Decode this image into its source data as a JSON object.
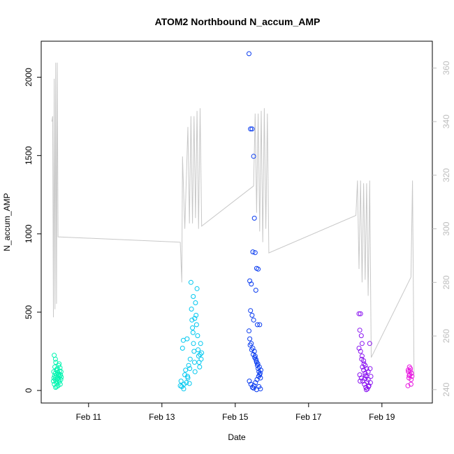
{
  "chart_data": {
    "type": "scatter",
    "title": "ATOM2 Northbound N_accum_AMP",
    "xlabel": "Date",
    "ylabel": "N_accum_AMP",
    "xlim": [
      "2024-02-09T17:00",
      "2024-02-20T09:00"
    ],
    "ylim": [
      -80,
      2230
    ],
    "ylim_right": [
      235,
      370
    ],
    "x_ticks": [
      {
        "value": "2024-02-11T00:00",
        "label": "Feb 11"
      },
      {
        "value": "2024-02-13T00:00",
        "label": "Feb 13"
      },
      {
        "value": "2024-02-15T00:00",
        "label": "Feb 15"
      },
      {
        "value": "2024-02-17T00:00",
        "label": "Feb 17"
      },
      {
        "value": "2024-02-19T00:00",
        "label": "Feb 19"
      }
    ],
    "y_ticks": [
      0,
      500,
      1000,
      1500,
      2000
    ],
    "y_ticks_right": [
      240,
      260,
      280,
      300,
      320,
      340,
      360
    ],
    "grid": false,
    "legend": "none",
    "colors": {
      "line": "#c8c8c8",
      "axis": "#000000",
      "right_axis": "#bdbdbd"
    },
    "series": [
      {
        "color": "#00f5b0",
        "points": [
          [
            "2024-02-10T01:00",
            60
          ],
          [
            "2024-02-10T01:10",
            120
          ],
          [
            "2024-02-10T01:20",
            80
          ],
          [
            "2024-02-10T01:30",
            225
          ],
          [
            "2024-02-10T01:35",
            40
          ],
          [
            "2024-02-10T01:45",
            95
          ],
          [
            "2024-02-10T01:55",
            150
          ],
          [
            "2024-02-10T02:05",
            70
          ],
          [
            "2024-02-10T02:15",
            110
          ],
          [
            "2024-02-10T02:25",
            20
          ],
          [
            "2024-02-10T02:30",
            180
          ],
          [
            "2024-02-10T02:40",
            85
          ],
          [
            "2024-02-10T02:50",
            130
          ],
          [
            "2024-02-10T03:00",
            60
          ],
          [
            "2024-02-10T03:10",
            100
          ],
          [
            "2024-02-10T03:20",
            45
          ],
          [
            "2024-02-10T03:30",
            140
          ],
          [
            "2024-02-10T03:40",
            75
          ],
          [
            "2024-02-10T03:50",
            115
          ],
          [
            "2024-02-10T04:00",
            30
          ],
          [
            "2024-02-10T04:10",
            95
          ],
          [
            "2024-02-10T04:20",
            160
          ],
          [
            "2024-02-10T04:30",
            65
          ],
          [
            "2024-02-10T04:40",
            105
          ],
          [
            "2024-02-10T04:50",
            55
          ],
          [
            "2024-02-10T05:00",
            125
          ],
          [
            "2024-02-10T05:10",
            90
          ],
          [
            "2024-02-10T05:20",
            145
          ],
          [
            "2024-02-10T05:30",
            40
          ],
          [
            "2024-02-10T05:40",
            100
          ],
          [
            "2024-02-10T05:50",
            70
          ],
          [
            "2024-02-10T06:00",
            120
          ],
          [
            "2024-02-10T06:10",
            85
          ],
          [
            "2024-02-10T02:20",
            200
          ],
          [
            "2024-02-10T03:05",
            25
          ],
          [
            "2024-02-10T04:45",
            170
          ]
        ]
      },
      {
        "color": "#00c8f0",
        "points": [
          [
            "2024-02-13T12:00",
            30
          ],
          [
            "2024-02-13T12:30",
            60
          ],
          [
            "2024-02-13T13:00",
            25
          ],
          [
            "2024-02-13T13:30",
            270
          ],
          [
            "2024-02-13T14:00",
            320
          ],
          [
            "2024-02-13T14:30",
            40
          ],
          [
            "2024-02-13T15:00",
            100
          ],
          [
            "2024-02-13T15:30",
            130
          ],
          [
            "2024-02-13T16:00",
            50
          ],
          [
            "2024-02-13T16:30",
            330
          ],
          [
            "2024-02-13T17:00",
            80
          ],
          [
            "2024-02-13T17:30",
            160
          ],
          [
            "2024-02-13T18:00",
            45
          ],
          [
            "2024-02-13T18:30",
            200
          ],
          [
            "2024-02-13T19:00",
            690
          ],
          [
            "2024-02-13T19:20",
            520
          ],
          [
            "2024-02-13T19:40",
            450
          ],
          [
            "2024-02-13T20:00",
            400
          ],
          [
            "2024-02-13T20:20",
            370
          ],
          [
            "2024-02-13T20:40",
            300
          ],
          [
            "2024-02-13T21:00",
            250
          ],
          [
            "2024-02-13T21:20",
            180
          ],
          [
            "2024-02-13T21:40",
            120
          ],
          [
            "2024-02-13T22:00",
            560
          ],
          [
            "2024-02-13T22:20",
            480
          ],
          [
            "2024-02-13T22:40",
            420
          ],
          [
            "2024-02-13T23:00",
            650
          ],
          [
            "2024-02-13T23:20",
            350
          ],
          [
            "2024-02-13T23:40",
            260
          ],
          [
            "2024-02-14T00:00",
            220
          ],
          [
            "2024-02-14T00:20",
            180
          ],
          [
            "2024-02-14T00:40",
            150
          ],
          [
            "2024-02-14T01:00",
            230
          ],
          [
            "2024-02-14T01:20",
            300
          ],
          [
            "2024-02-14T01:40",
            200
          ],
          [
            "2024-02-14T02:00",
            240
          ],
          [
            "2024-02-13T14:15",
            10
          ],
          [
            "2024-02-13T16:45",
            90
          ],
          [
            "2024-02-13T18:15",
            140
          ],
          [
            "2024-02-13T20:30",
            600
          ],
          [
            "2024-02-13T21:30",
            460
          ]
        ]
      },
      {
        "color": "#0a3cf0",
        "points": [
          [
            "2024-02-15T09:00",
            2150
          ],
          [
            "2024-02-15T10:00",
            1670
          ],
          [
            "2024-02-15T11:00",
            1670
          ],
          [
            "2024-02-15T12:00",
            1495
          ],
          [
            "2024-02-15T12:30",
            1100
          ],
          [
            "2024-02-15T11:30",
            885
          ],
          [
            "2024-02-15T13:00",
            880
          ],
          [
            "2024-02-15T14:00",
            780
          ],
          [
            "2024-02-15T15:00",
            775
          ],
          [
            "2024-02-15T09:30",
            700
          ],
          [
            "2024-02-15T10:30",
            680
          ],
          [
            "2024-02-15T13:30",
            640
          ],
          [
            "2024-02-15T10:00",
            510
          ],
          [
            "2024-02-15T11:00",
            480
          ],
          [
            "2024-02-15T12:00",
            450
          ],
          [
            "2024-02-15T14:30",
            420
          ],
          [
            "2024-02-15T16:00",
            420
          ],
          [
            "2024-02-15T09:00",
            380
          ],
          [
            "2024-02-15T09:30",
            330
          ],
          [
            "2024-02-15T10:30",
            300
          ],
          [
            "2024-02-15T11:30",
            270
          ],
          [
            "2024-02-15T12:30",
            250
          ],
          [
            "2024-02-15T13:00",
            220
          ],
          [
            "2024-02-15T13:30",
            200
          ],
          [
            "2024-02-15T14:00",
            180
          ],
          [
            "2024-02-15T14:30",
            160
          ],
          [
            "2024-02-15T15:00",
            140
          ],
          [
            "2024-02-15T15:30",
            120
          ],
          [
            "2024-02-15T16:00",
            100
          ],
          [
            "2024-02-15T16:30",
            80
          ],
          [
            "2024-02-15T09:15",
            60
          ],
          [
            "2024-02-15T10:15",
            40
          ],
          [
            "2024-02-15T11:15",
            20
          ],
          [
            "2024-02-15T12:15",
            30
          ],
          [
            "2024-02-15T13:15",
            50
          ],
          [
            "2024-02-15T14:15",
            70
          ],
          [
            "2024-02-15T15:15",
            90
          ],
          [
            "2024-02-15T16:15",
            110
          ],
          [
            "2024-02-15T16:45",
            130
          ],
          [
            "2024-02-15T15:45",
            150
          ],
          [
            "2024-02-15T14:45",
            170
          ],
          [
            "2024-02-15T13:45",
            190
          ],
          [
            "2024-02-15T12:45",
            210
          ],
          [
            "2024-02-15T11:45",
            230
          ],
          [
            "2024-02-15T10:45",
            260
          ],
          [
            "2024-02-15T09:45",
            290
          ],
          [
            "2024-02-15T16:30",
            10
          ],
          [
            "2024-02-15T15:30",
            25
          ],
          [
            "2024-02-15T14:00",
            5
          ],
          [
            "2024-02-15T12:00",
            15
          ]
        ]
      },
      {
        "color": "#8a14f0",
        "points": [
          [
            "2024-02-18T09:00",
            490
          ],
          [
            "2024-02-18T10:00",
            490
          ],
          [
            "2024-02-18T09:30",
            385
          ],
          [
            "2024-02-18T10:30",
            350
          ],
          [
            "2024-02-18T11:00",
            300
          ],
          [
            "2024-02-18T16:00",
            300
          ],
          [
            "2024-02-18T09:00",
            270
          ],
          [
            "2024-02-18T10:00",
            250
          ],
          [
            "2024-02-18T11:00",
            220
          ],
          [
            "2024-02-18T12:00",
            190
          ],
          [
            "2024-02-18T13:00",
            160
          ],
          [
            "2024-02-18T14:00",
            140
          ],
          [
            "2024-02-18T15:00",
            120
          ],
          [
            "2024-02-18T09:30",
            100
          ],
          [
            "2024-02-18T10:30",
            80
          ],
          [
            "2024-02-18T11:30",
            60
          ],
          [
            "2024-02-18T12:30",
            40
          ],
          [
            "2024-02-18T13:30",
            20
          ],
          [
            "2024-02-18T14:30",
            10
          ],
          [
            "2024-02-18T15:30",
            30
          ],
          [
            "2024-02-18T16:30",
            50
          ],
          [
            "2024-02-18T12:00",
            130
          ],
          [
            "2024-02-18T13:00",
            110
          ],
          [
            "2024-02-18T14:00",
            90
          ],
          [
            "2024-02-18T15:00",
            70
          ],
          [
            "2024-02-18T11:15",
            150
          ],
          [
            "2024-02-18T12:15",
            170
          ],
          [
            "2024-02-18T13:15",
            95
          ],
          [
            "2024-02-18T14:15",
            55
          ],
          [
            "2024-02-18T15:15",
            25
          ],
          [
            "2024-02-18T10:45",
            200
          ],
          [
            "2024-02-18T16:15",
            140
          ],
          [
            "2024-02-18T09:45",
            60
          ],
          [
            "2024-02-18T16:45",
            90
          ],
          [
            "2024-02-18T13:45",
            5
          ],
          [
            "2024-02-18T12:45",
            75
          ]
        ]
      },
      {
        "color": "#e814e0",
        "points": [
          [
            "2024-02-19T17:00",
            30
          ],
          [
            "2024-02-19T17:20",
            120
          ],
          [
            "2024-02-19T17:40",
            80
          ],
          [
            "2024-02-19T18:00",
            150
          ],
          [
            "2024-02-19T18:20",
            100
          ],
          [
            "2024-02-19T18:40",
            140
          ],
          [
            "2024-02-19T19:00",
            40
          ],
          [
            "2024-02-19T19:20",
            110
          ],
          [
            "2024-02-19T19:40",
            90
          ],
          [
            "2024-02-19T17:10",
            130
          ],
          [
            "2024-02-19T17:50",
            95
          ],
          [
            "2024-02-19T18:30",
            125
          ],
          [
            "2024-02-19T19:10",
            70
          ]
        ]
      }
    ],
    "line_series": {
      "axis": "right",
      "points": [
        [
          "2024-02-10T00:00",
          340
        ],
        [
          "2024-02-10T00:30",
          342
        ],
        [
          "2024-02-10T01:00",
          267
        ],
        [
          "2024-02-10T01:30",
          356
        ],
        [
          "2024-02-10T02:00",
          270
        ],
        [
          "2024-02-10T02:30",
          362
        ],
        [
          "2024-02-10T03:00",
          272
        ],
        [
          "2024-02-10T03:30",
          362
        ],
        [
          "2024-02-10T04:00",
          297
        ],
        [
          "2024-02-13T12:00",
          295
        ],
        [
          "2024-02-13T13:00",
          280
        ],
        [
          "2024-02-13T13:30",
          327
        ],
        [
          "2024-02-13T15:00",
          300
        ],
        [
          "2024-02-13T17:00",
          338
        ],
        [
          "2024-02-13T18:00",
          302
        ],
        [
          "2024-02-13T19:00",
          342
        ],
        [
          "2024-02-13T20:00",
          302
        ],
        [
          "2024-02-13T21:00",
          342
        ],
        [
          "2024-02-13T22:00",
          304
        ],
        [
          "2024-02-13T23:00",
          344
        ],
        [
          "2024-02-14T00:00",
          300
        ],
        [
          "2024-02-14T01:00",
          345
        ],
        [
          "2024-02-14T02:00",
          301
        ],
        [
          "2024-02-15T12:00",
          316
        ],
        [
          "2024-02-15T13:00",
          343
        ],
        [
          "2024-02-15T14:00",
          306
        ],
        [
          "2024-02-15T15:00",
          343
        ],
        [
          "2024-02-15T16:00",
          299
        ],
        [
          "2024-02-15T17:00",
          344
        ],
        [
          "2024-02-15T18:00",
          295
        ],
        [
          "2024-02-15T19:00",
          345
        ],
        [
          "2024-02-15T20:00",
          300
        ],
        [
          "2024-02-15T21:00",
          343
        ],
        [
          "2024-02-15T22:00",
          291
        ],
        [
          "2024-02-18T07:00",
          305
        ],
        [
          "2024-02-18T08:00",
          318
        ],
        [
          "2024-02-18T09:00",
          285
        ],
        [
          "2024-02-18T10:00",
          318
        ],
        [
          "2024-02-18T11:00",
          280
        ],
        [
          "2024-02-18T12:00",
          317
        ],
        [
          "2024-02-18T13:00",
          281
        ],
        [
          "2024-02-18T14:00",
          317
        ],
        [
          "2024-02-18T15:00",
          275
        ],
        [
          "2024-02-18T16:00",
          318
        ],
        [
          "2024-02-18T17:00",
          252
        ],
        [
          "2024-02-19T19:00",
          282
        ],
        [
          "2024-02-19T20:00",
          318
        ],
        [
          "2024-02-19T21:00",
          245
        ]
      ]
    }
  }
}
